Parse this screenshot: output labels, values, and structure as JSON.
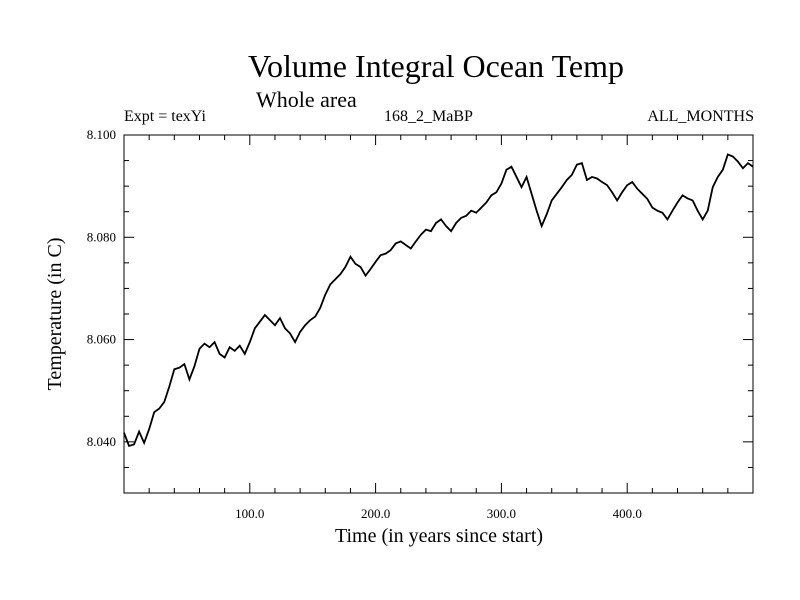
{
  "chart_data": {
    "type": "line",
    "title": "Volume Integral Ocean Temp",
    "subtitle": "Whole area",
    "annotations": {
      "left": "Expt = texYi",
      "center": "168_2_MaBP",
      "right": "ALL_MONTHS"
    },
    "xlabel": "Time (in years since start)",
    "ylabel": "Temperature (in C)",
    "xlim": [
      0,
      500
    ],
    "ylim": [
      8.03,
      8.1
    ],
    "x_ticks": [
      100,
      200,
      300,
      400
    ],
    "x_tick_labels": [
      "100.0",
      "200.0",
      "300.0",
      "400.0"
    ],
    "y_ticks": [
      8.04,
      8.06,
      8.08,
      8.1
    ],
    "y_tick_labels": [
      "8.040",
      "8.060",
      "8.080",
      "8.100"
    ],
    "grid": false,
    "series": [
      {
        "x": [
          0,
          4,
          8,
          12,
          16,
          20,
          24,
          28,
          32,
          36,
          40,
          44,
          48,
          52,
          56,
          60,
          64,
          68,
          72,
          76,
          80,
          84,
          88,
          92,
          96,
          100,
          104,
          108,
          112,
          116,
          120,
          124,
          128,
          132,
          136,
          140,
          144,
          148,
          152,
          156,
          160,
          164,
          168,
          172,
          176,
          180,
          184,
          188,
          192,
          196,
          200,
          204,
          208,
          212,
          216,
          220,
          224,
          228,
          232,
          236,
          240,
          244,
          248,
          252,
          256,
          260,
          264,
          268,
          272,
          276,
          280,
          284,
          288,
          292,
          296,
          300,
          304,
          308,
          312,
          316,
          320,
          324,
          328,
          332,
          336,
          340,
          344,
          348,
          352,
          356,
          360,
          364,
          368,
          372,
          376,
          380,
          384,
          388,
          392,
          396,
          400,
          404,
          408,
          412,
          416,
          420,
          424,
          428,
          432,
          436,
          440,
          444,
          448,
          452,
          456,
          460,
          464,
          468,
          472,
          476,
          480,
          484,
          488,
          492,
          496,
          500
        ],
        "y": [
          8.0418,
          8.0392,
          8.0395,
          8.042,
          8.0398,
          8.0425,
          8.0458,
          8.0465,
          8.0478,
          8.0508,
          8.0542,
          8.0545,
          8.0552,
          8.0522,
          8.0548,
          8.0582,
          8.0592,
          8.0585,
          8.0595,
          8.0572,
          8.0565,
          8.0585,
          8.0578,
          8.0588,
          8.0572,
          8.0595,
          8.0622,
          8.0635,
          8.0648,
          8.0638,
          8.0628,
          8.0642,
          8.0622,
          8.0612,
          8.0595,
          8.0615,
          8.0628,
          8.0638,
          8.0645,
          8.0662,
          8.0688,
          8.0708,
          8.0718,
          8.0728,
          8.0742,
          8.0762,
          8.0748,
          8.0742,
          8.0725,
          8.0738,
          8.0752,
          8.0765,
          8.0768,
          8.0775,
          8.0788,
          8.0792,
          8.0785,
          8.0778,
          8.0792,
          8.0805,
          8.0815,
          8.0812,
          8.0828,
          8.0835,
          8.0822,
          8.0812,
          8.0828,
          8.0838,
          8.0842,
          8.0852,
          8.0848,
          8.0858,
          8.0868,
          8.0882,
          8.0888,
          8.0905,
          8.0932,
          8.0938,
          8.0918,
          8.0898,
          8.0918,
          8.0885,
          8.0852,
          8.0822,
          8.0845,
          8.0872,
          8.0885,
          8.0898,
          8.0912,
          8.0922,
          8.0942,
          8.0945,
          8.0912,
          8.0918,
          8.0915,
          8.0908,
          8.0902,
          8.0888,
          8.0872,
          8.0888,
          8.0902,
          8.0908,
          8.0895,
          8.0885,
          8.0875,
          8.0858,
          8.0852,
          8.0848,
          8.0835,
          8.0852,
          8.0868,
          8.0882,
          8.0876,
          8.0872,
          8.0852,
          8.0835,
          8.0852,
          8.0898,
          8.0918,
          8.0932,
          8.0962,
          8.0958,
          8.0948,
          8.0935,
          8.0945,
          8.0938
        ]
      }
    ]
  }
}
